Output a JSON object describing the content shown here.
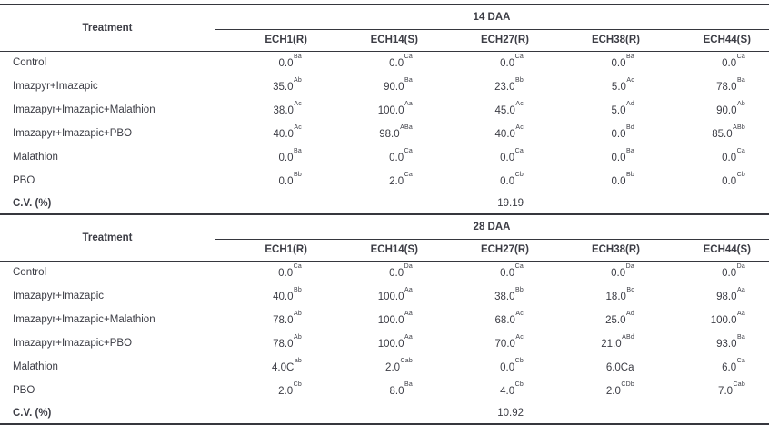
{
  "page": {
    "background": "#ffffff",
    "text_color": "#3c3d45",
    "border_color": "#36373e"
  },
  "tables": [
    {
      "period": "14 DAA",
      "treatment_header": "Treatment",
      "columns": [
        "ECH1(R)",
        "ECH14(S)",
        "ECH27(R)",
        "ECH38(R)",
        "ECH44(S)"
      ],
      "rows": [
        {
          "treatment": "Control",
          "cells": [
            {
              "base": "0.0",
              "sup": "Ba"
            },
            {
              "base": "0.0",
              "sup": "Ca"
            },
            {
              "base": "0.0",
              "sup": "Ca"
            },
            {
              "base": "0.0",
              "sup": "Ba"
            },
            {
              "base": "0.0",
              "sup": "Ca"
            }
          ]
        },
        {
          "treatment": "Imazpyr+Imazapic",
          "cells": [
            {
              "base": "35.0",
              "sup": "Ab"
            },
            {
              "base": "90.0",
              "sup": "Ba"
            },
            {
              "base": "23.0",
              "sup": "Bb"
            },
            {
              "base": "5.0",
              "sup": "Ac"
            },
            {
              "base": "78.0",
              "sup": "Ba"
            }
          ]
        },
        {
          "treatment": "Imazapyr+Imazapic+Malathion",
          "cells": [
            {
              "base": "38.0",
              "sup": "Ac"
            },
            {
              "base": "100.0",
              "sup": "Aa"
            },
            {
              "base": "45.0",
              "sup": "Ac"
            },
            {
              "base": "5.0",
              "sup": "Ad"
            },
            {
              "base": "90.0",
              "sup": "Ab"
            }
          ]
        },
        {
          "treatment": "Imazapyr+Imazapic+PBO",
          "cells": [
            {
              "base": "40.0",
              "sup": "Ac"
            },
            {
              "base": "98.0",
              "sup": "ABa"
            },
            {
              "base": "40.0",
              "sup": "Ac"
            },
            {
              "base": "0.0",
              "sup": "Bd"
            },
            {
              "base": "85.0",
              "sup": "ABb"
            }
          ]
        },
        {
          "treatment": "Malathion",
          "cells": [
            {
              "base": "0.0",
              "sup": "Ba"
            },
            {
              "base": "0.0",
              "sup": "Ca"
            },
            {
              "base": "0.0",
              "sup": "Ca"
            },
            {
              "base": "0.0",
              "sup": "Ba"
            },
            {
              "base": "0.0",
              "sup": "Ca"
            }
          ]
        },
        {
          "treatment": "PBO",
          "cells": [
            {
              "base": "0.0",
              "sup": "Bb"
            },
            {
              "base": "2.0",
              "sup": "Ca"
            },
            {
              "base": "0.0",
              "sup": "Cb"
            },
            {
              "base": "0.0",
              "sup": "Bb"
            },
            {
              "base": "0.0",
              "sup": "Cb"
            }
          ]
        }
      ],
      "cv": {
        "label": "C.V. (%)",
        "value": "19.19",
        "value_col": 2
      }
    },
    {
      "period": "28 DAA",
      "treatment_header": "Treatment",
      "columns": [
        "ECH1(R)",
        "ECH14(S)",
        "ECH27(R)",
        "ECH38(R)",
        "ECH44(S)"
      ],
      "rows": [
        {
          "treatment": "Control",
          "cells": [
            {
              "base": "0.0",
              "sup": "Ca"
            },
            {
              "base": "0.0",
              "sup": "Da"
            },
            {
              "base": "0.0",
              "sup": "Ca"
            },
            {
              "base": "0.0",
              "sup": "Da"
            },
            {
              "base": "0.0",
              "sup": "Da"
            }
          ]
        },
        {
          "treatment": "Imazapyr+Imazapic",
          "cells": [
            {
              "base": "40.0",
              "sup": "Bb"
            },
            {
              "base": "100.0",
              "sup": "Aa"
            },
            {
              "base": "38.0",
              "sup": "Bb"
            },
            {
              "base": "18.0",
              "sup": "Bc"
            },
            {
              "base": "98.0",
              "sup": "Aa"
            }
          ]
        },
        {
          "treatment": "Imazapyr+Imazapic+Malathion",
          "cells": [
            {
              "base": "78.0",
              "sup": "Ab"
            },
            {
              "base": "100.0",
              "sup": "Aa"
            },
            {
              "base": "68.0",
              "sup": "Ac"
            },
            {
              "base": "25.0",
              "sup": "Ad"
            },
            {
              "base": "100.0",
              "sup": "Aa"
            }
          ]
        },
        {
          "treatment": "Imazapyr+Imazapic+PBO",
          "cells": [
            {
              "base": "78.0",
              "sup": "Ab"
            },
            {
              "base": "100.0",
              "sup": "Aa"
            },
            {
              "base": "70.0",
              "sup": "Ac"
            },
            {
              "base": "21.0",
              "sup": "ABd"
            },
            {
              "base": "93.0",
              "sup": "Ba"
            }
          ]
        },
        {
          "treatment": "Malathion",
          "cells": [
            {
              "base": "4.0C",
              "sup": "ab"
            },
            {
              "base": "2.0",
              "sup": "Cab"
            },
            {
              "base": "0.0",
              "sup": "Cb"
            },
            {
              "base": "6.0Ca",
              "sup": ""
            },
            {
              "base": "6.0",
              "sup": "Ca"
            }
          ]
        },
        {
          "treatment": "PBO",
          "cells": [
            {
              "base": "2.0",
              "sup": "Cb"
            },
            {
              "base": "8.0",
              "sup": "Ba"
            },
            {
              "base": "4.0",
              "sup": "Cb"
            },
            {
              "base": "2.0",
              "sup": "CDb"
            },
            {
              "base": "7.0",
              "sup": "Cab"
            }
          ]
        }
      ],
      "cv": {
        "label": "C.V. (%)",
        "value": "10.92",
        "value_col": 2
      }
    }
  ]
}
